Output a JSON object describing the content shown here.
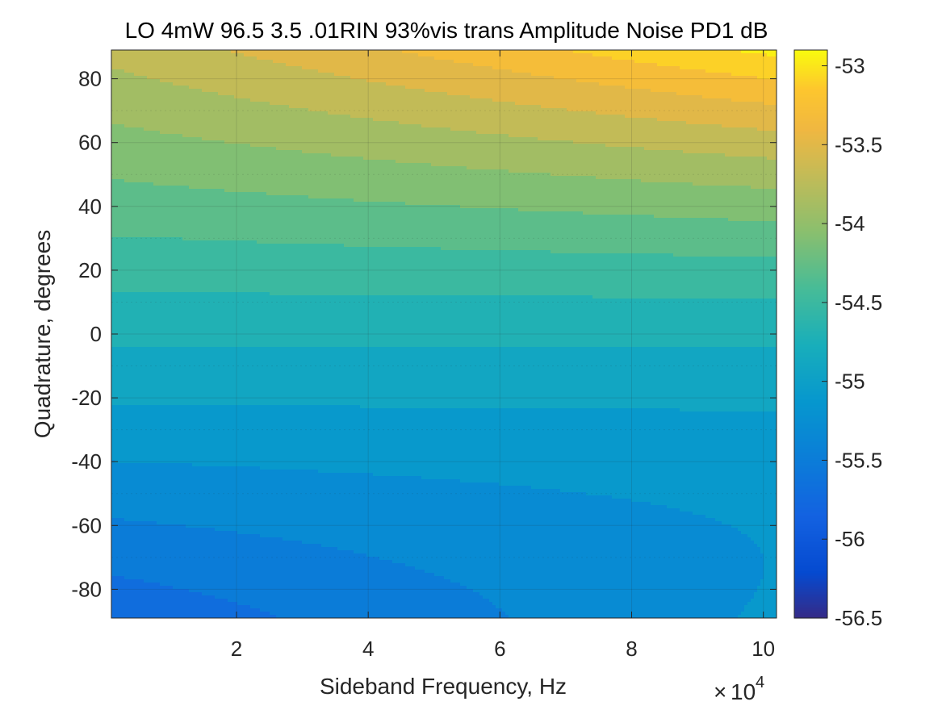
{
  "chart_data": {
    "type": "heatmap",
    "subtype": "filled-contour",
    "title": "LO 4mW 96.5 3.5 .01RIN 93%vis trans Amplitude Noise PD1 dB",
    "xlabel": "Sideband Frequency, Hz",
    "ylabel": "Quadrature, degrees",
    "x_multiplier": {
      "base": "10",
      "exponent": "4",
      "prefix": "×"
    },
    "xlim": [
      0.1,
      10.2
    ],
    "ylim": [
      -89,
      89
    ],
    "xticks": [
      2,
      4,
      6,
      8,
      10
    ],
    "yticks": [
      80,
      60,
      40,
      20,
      0,
      -20,
      -40,
      -60,
      -80
    ],
    "xtick_labels": [
      "2",
      "4",
      "6",
      "8",
      "10"
    ],
    "ytick_labels": [
      "80",
      "60",
      "40",
      "20",
      "0",
      "-20",
      "-40",
      "-60",
      "-80"
    ],
    "grid": true,
    "colorbar": {
      "colormap": "parula",
      "clim": [
        -56.5,
        -52.9
      ],
      "ticks": [
        -53,
        -53.5,
        -54,
        -54.5,
        -55,
        -55.5,
        -56,
        -56.5
      ],
      "tick_labels": [
        "-53",
        "-53.5",
        "-54",
        "-54.5",
        "-55",
        "-55.5",
        "-56",
        "-56.5"
      ]
    },
    "contour_levels": [
      -56.4,
      -56.2,
      -56.0,
      -55.8,
      -55.6,
      -55.4,
      -55.2,
      -55.0,
      -54.8,
      -54.6,
      -54.4,
      -54.2,
      -54.0,
      -53.8,
      -53.6,
      -53.4,
      -53.2,
      -53.0
    ],
    "z_model": {
      "description": "noise level (dB) read from contour fill: nearly linear in quadrature, steepening with sideband frequency",
      "center_dB": -54.75,
      "slope_dB_per_degree_at_x0": 0.0113,
      "slope_increase_per_x_unit": 0.000115,
      "curvature_dB_per_degree2_per_x_unit": 8.6e-06
    }
  }
}
